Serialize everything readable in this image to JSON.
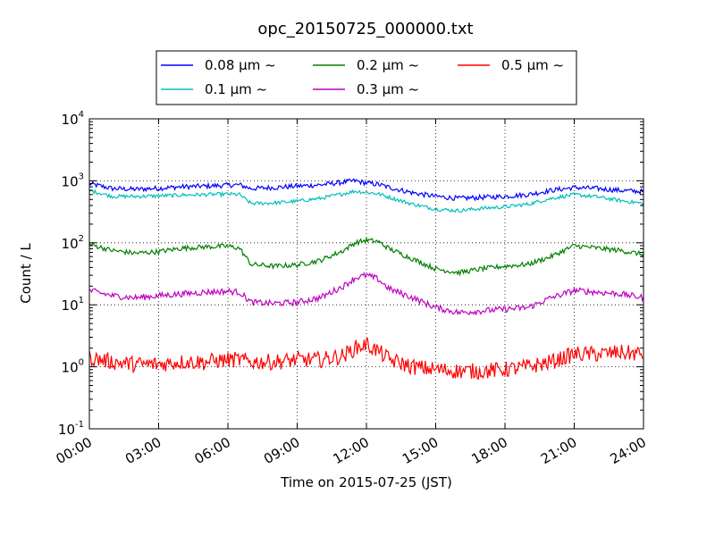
{
  "chart_data": {
    "type": "line",
    "title": "opc_20150725_000000.txt",
    "xlabel": "Time on 2015-07-25 (JST)",
    "ylabel": "Count / L",
    "yscale": "log",
    "ylim": [
      0.1,
      10000
    ],
    "xlim": [
      "00:00",
      "24:00"
    ],
    "x_ticks": [
      "00:00",
      "03:00",
      "06:00",
      "09:00",
      "12:00",
      "15:00",
      "18:00",
      "21:00",
      "24:00"
    ],
    "y_ticks": [
      {
        "value": 0.1,
        "base": "10",
        "exp": "-1"
      },
      {
        "value": 1,
        "base": "10",
        "exp": "0"
      },
      {
        "value": 10,
        "base": "10",
        "exp": "1"
      },
      {
        "value": 100,
        "base": "10",
        "exp": "2"
      },
      {
        "value": 1000,
        "base": "10",
        "exp": "3"
      },
      {
        "value": 10000,
        "base": "10",
        "exp": "4"
      }
    ],
    "grid": true,
    "legend_position": "top",
    "x": [
      "00:00",
      "01:00",
      "02:00",
      "03:00",
      "04:00",
      "05:00",
      "06:00",
      "06:30",
      "07:00",
      "08:00",
      "09:00",
      "10:00",
      "11:00",
      "11:30",
      "12:00",
      "12:30",
      "13:00",
      "14:00",
      "15:00",
      "16:00",
      "17:00",
      "18:00",
      "19:00",
      "20:00",
      "21:00",
      "22:00",
      "23:00",
      "24:00"
    ],
    "series": [
      {
        "name": "0.08 μm ~",
        "color": "#0000ff",
        "noise": 0.04,
        "values": [
          900,
          750,
          730,
          760,
          800,
          820,
          850,
          860,
          750,
          780,
          820,
          860,
          950,
          1000,
          920,
          880,
          780,
          640,
          560,
          520,
          540,
          560,
          600,
          700,
          780,
          750,
          700,
          670
        ]
      },
      {
        "name": "0.1 μm ~",
        "color": "#00bfbf",
        "noise": 0.03,
        "values": [
          700,
          560,
          560,
          570,
          590,
          600,
          610,
          600,
          430,
          440,
          470,
          520,
          620,
          680,
          650,
          620,
          540,
          420,
          350,
          330,
          360,
          380,
          420,
          520,
          600,
          550,
          480,
          430
        ]
      },
      {
        "name": "0.2 μm ~",
        "color": "#008000",
        "noise": 0.04,
        "values": [
          95,
          75,
          68,
          72,
          82,
          86,
          88,
          82,
          45,
          42,
          44,
          52,
          75,
          100,
          110,
          105,
          80,
          55,
          38,
          33,
          38,
          42,
          45,
          60,
          90,
          82,
          75,
          65
        ]
      },
      {
        "name": "0.3 μm ~",
        "color": "#bf00bf",
        "noise": 0.05,
        "values": [
          17,
          14,
          13,
          14,
          15,
          16,
          16.5,
          16,
          11,
          10.5,
          11,
          13,
          20,
          27,
          30,
          26,
          18,
          13,
          9,
          7.5,
          8,
          8.5,
          9,
          13,
          17,
          16,
          15,
          13
        ]
      },
      {
        "name": "0.5 μm ~",
        "color": "#ff0000",
        "noise": 0.13,
        "values": [
          1.4,
          1.2,
          1.1,
          1.1,
          1.2,
          1.2,
          1.3,
          1.3,
          1.2,
          1.2,
          1.3,
          1.3,
          1.5,
          2.0,
          2.3,
          1.8,
          1.3,
          1.0,
          0.9,
          0.85,
          0.85,
          0.9,
          1.0,
          1.2,
          1.6,
          1.6,
          1.7,
          1.6
        ]
      }
    ]
  }
}
